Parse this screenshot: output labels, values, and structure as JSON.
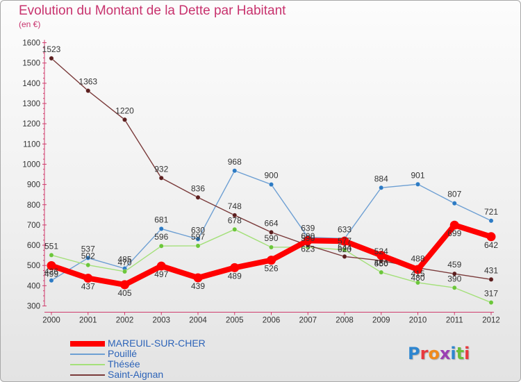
{
  "title": "Evolution du Montant de la Dette par Habitant",
  "unit": "(en €)",
  "logo_text": "Proxiti",
  "chart_data": {
    "type": "line",
    "x": [
      "2000",
      "2001",
      "2002",
      "2003",
      "2004",
      "2005",
      "2006",
      "2007",
      "2008",
      "2009",
      "2010",
      "2011",
      "2012"
    ],
    "ylim": [
      300,
      1600
    ],
    "yticks": [
      300,
      400,
      500,
      600,
      700,
      800,
      900,
      1000,
      1100,
      1200,
      1300,
      1400,
      1500,
      1600
    ],
    "grid": false,
    "legend_position": "bottom-left",
    "series": [
      {
        "name": "MAREUIL-SUR-CHER",
        "color": "#ff0000",
        "dot": "#e40000",
        "values": [
          499,
          437,
          405,
          497,
          439,
          489,
          526,
          623,
          620,
          550,
          480,
          699,
          642
        ]
      },
      {
        "name": "Pouillé",
        "color": "#6d9fd3",
        "dot": "#2d7bc4",
        "values": [
          426,
          537,
          485,
          681,
          630,
          968,
          900,
          639,
          633,
          884,
          901,
          807,
          721
        ]
      },
      {
        "name": "Thésée",
        "color": "#a4e07a",
        "dot": "#6cc63b",
        "values": [
          551,
          502,
          470,
          596,
          597,
          678,
          590,
          590,
          577,
          466,
          415,
          390,
          317
        ]
      },
      {
        "name": "Saint-Aignan",
        "color": "#7a3a3a",
        "dot": "#5c1f1f",
        "values": [
          1523,
          1363,
          1220,
          932,
          836,
          748,
          664,
          600,
          544,
          524,
          488,
          459,
          431
        ]
      }
    ]
  }
}
